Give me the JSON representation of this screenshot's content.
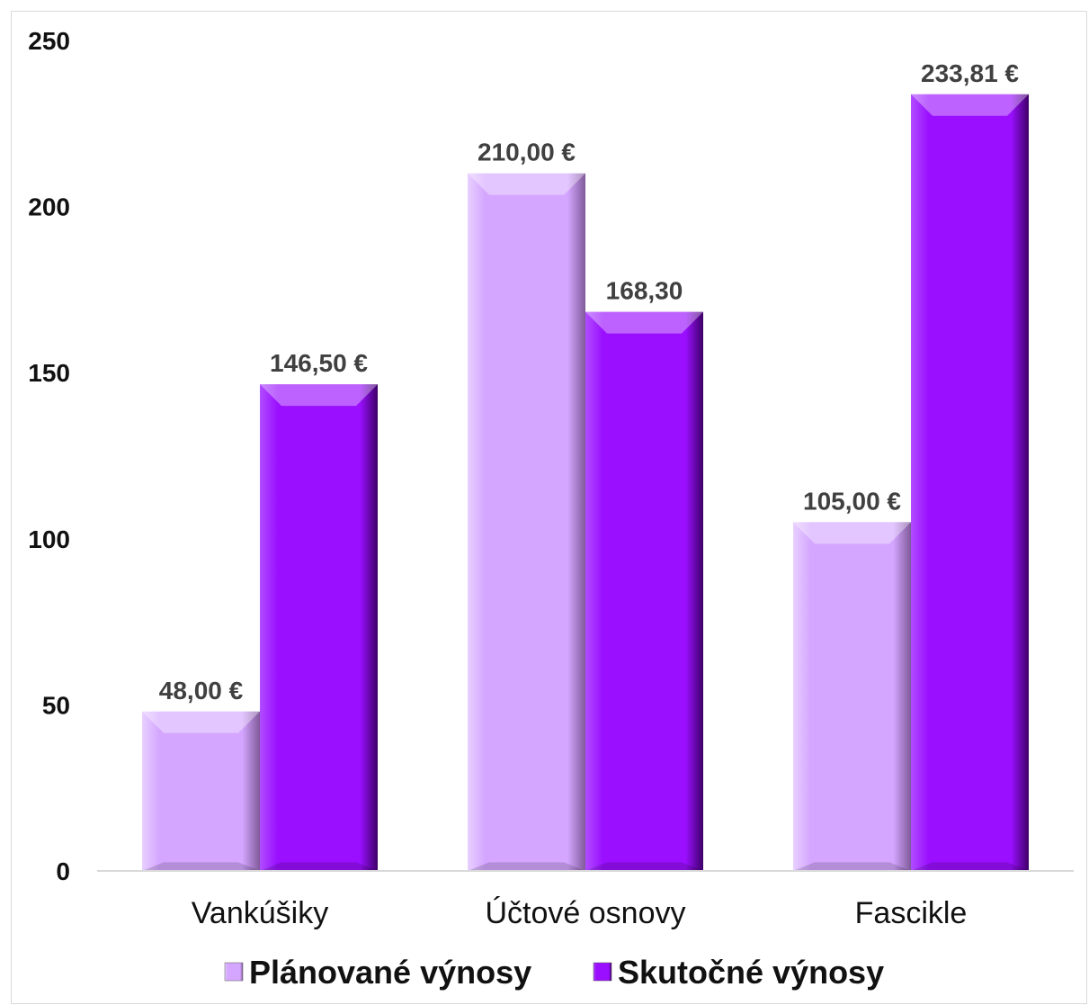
{
  "chart_data": {
    "type": "bar",
    "categories": [
      "Vankúšiky",
      "Účtové osnovy",
      "Fascikle"
    ],
    "series": [
      {
        "name": "Plánované výnosy",
        "values": [
          48.0,
          210.0,
          105.0
        ],
        "labels": [
          "48,00 €",
          "210,00 €",
          "105,00 €"
        ],
        "color": "#d4a6ff"
      },
      {
        "name": "Skutočné výnosy",
        "values": [
          146.5,
          168.3,
          233.81
        ],
        "labels": [
          "146,50 €",
          "168,30",
          "233,81 €"
        ],
        "color": "#9a0fff"
      }
    ],
    "yticks": [
      "0",
      "50",
      "100",
      "150",
      "200",
      "250"
    ],
    "ylim": [
      0,
      250
    ],
    "grid": false,
    "legend_position": "bottom"
  }
}
